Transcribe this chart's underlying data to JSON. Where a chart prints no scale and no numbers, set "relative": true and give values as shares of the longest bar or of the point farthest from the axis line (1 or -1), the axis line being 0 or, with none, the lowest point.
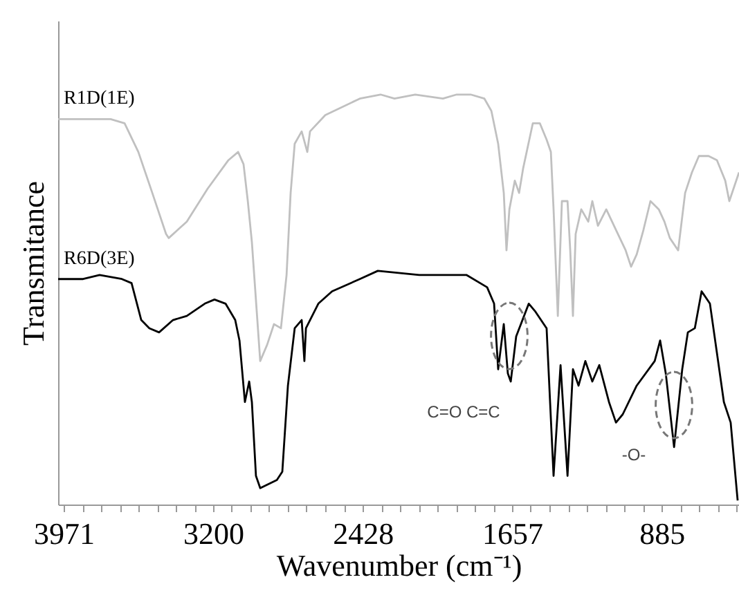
{
  "chart_data": {
    "type": "line",
    "relative": true,
    "xlabel": "Wavenumber (cm⁻¹)",
    "ylabel": "Transmitance",
    "xlim": [
      4000,
      486
    ],
    "xticks": [
      3971,
      {
        "value": 3875,
        "label": null
      },
      {
        "value": 3778,
        "label": null
      },
      {
        "value": 3682,
        "label": null
      },
      {
        "value": 3585,
        "label": null
      },
      {
        "value": 3489,
        "label": null
      },
      {
        "value": 3393,
        "label": null
      },
      {
        "value": 3296,
        "label": null
      },
      3200,
      {
        "value": 3104,
        "label": null
      },
      {
        "value": 3007,
        "label": null
      },
      {
        "value": 2911,
        "label": null
      },
      {
        "value": 2814,
        "label": null
      },
      {
        "value": 2718,
        "label": null
      },
      {
        "value": 2621,
        "label": null
      },
      {
        "value": 2525,
        "label": null
      },
      2428,
      {
        "value": 2332,
        "label": null
      },
      {
        "value": 2236,
        "label": null
      },
      {
        "value": 2139,
        "label": null
      },
      {
        "value": 2043,
        "label": null
      },
      {
        "value": 1946,
        "label": null
      },
      {
        "value": 1850,
        "label": null
      },
      {
        "value": 1753,
        "label": null
      },
      1657,
      {
        "value": 1561,
        "label": null
      },
      {
        "value": 1464,
        "label": null
      },
      {
        "value": 1368,
        "label": null
      },
      {
        "value": 1271,
        "label": null
      },
      {
        "value": 1175,
        "label": null
      },
      {
        "value": 1078,
        "label": null
      },
      {
        "value": 982,
        "label": null
      },
      885,
      {
        "value": 789,
        "label": null
      },
      {
        "value": 693,
        "label": null
      },
      {
        "value": 596,
        "label": null
      },
      {
        "value": 500,
        "label": null
      }
    ],
    "grid": false,
    "legend": false,
    "series": [
      {
        "name": "R1D(1E)",
        "color": "#c0c0c0",
        "x": [
          4000,
          3729,
          3657,
          3586,
          3514,
          3443,
          3429,
          3336,
          3229,
          3121,
          3071,
          3043,
          3021,
          3000,
          2957,
          2921,
          2886,
          2850,
          2821,
          2800,
          2779,
          2743,
          2714,
          2700,
          2621,
          2443,
          2336,
          2264,
          2157,
          2014,
          1943,
          1871,
          1800,
          1764,
          1729,
          1700,
          1686,
          1671,
          1643,
          1621,
          1600,
          1550,
          1514,
          1479,
          1457,
          1443,
          1421,
          1400,
          1371,
          1357,
          1343,
          1329,
          1300,
          1264,
          1243,
          1214,
          1171,
          1121,
          1071,
          1043,
          1014,
          979,
          943,
          900,
          871,
          843,
          800,
          764,
          729,
          693,
          643,
          600,
          557,
          536,
          486
        ],
        "values": [
          0.94,
          0.94,
          0.93,
          0.86,
          0.76,
          0.66,
          0.65,
          0.69,
          0.77,
          0.84,
          0.86,
          0.83,
          0.74,
          0.64,
          0.35,
          0.39,
          0.44,
          0.43,
          0.56,
          0.76,
          0.88,
          0.91,
          0.86,
          0.91,
          0.95,
          0.99,
          1.0,
          0.99,
          1.0,
          0.99,
          1.0,
          1.0,
          0.99,
          0.96,
          0.88,
          0.76,
          0.62,
          0.72,
          0.79,
          0.76,
          0.82,
          0.93,
          0.93,
          0.89,
          0.86,
          0.72,
          0.46,
          0.74,
          0.74,
          0.62,
          0.46,
          0.66,
          0.72,
          0.69,
          0.74,
          0.68,
          0.72,
          0.67,
          0.62,
          0.58,
          0.61,
          0.67,
          0.74,
          0.72,
          0.69,
          0.65,
          0.62,
          0.76,
          0.81,
          0.85,
          0.85,
          0.84,
          0.79,
          0.74,
          0.81
        ]
      },
      {
        "name": "R6D(3E)",
        "color": "#000000",
        "x": [
          4000,
          3871,
          3786,
          3671,
          3621,
          3571,
          3529,
          3479,
          3407,
          3336,
          3243,
          3193,
          3136,
          3086,
          3064,
          3036,
          3014,
          3000,
          2979,
          2957,
          2871,
          2843,
          2814,
          2779,
          2743,
          2729,
          2721,
          2657,
          2586,
          2443,
          2350,
          2136,
          1893,
          1786,
          1750,
          1729,
          1700,
          1679,
          1664,
          1636,
          1571,
          1536,
          1479,
          1443,
          1407,
          1371,
          1343,
          1314,
          1279,
          1243,
          1207,
          1157,
          1121,
          1086,
          1014,
          921,
          893,
          864,
          821,
          779,
          750,
          714,
          679,
          636,
          564,
          529,
          493
        ],
        "values": [
          0.55,
          0.55,
          0.56,
          0.55,
          0.54,
          0.45,
          0.43,
          0.42,
          0.45,
          0.46,
          0.49,
          0.5,
          0.49,
          0.45,
          0.4,
          0.25,
          0.3,
          0.25,
          0.07,
          0.04,
          0.06,
          0.08,
          0.29,
          0.43,
          0.45,
          0.35,
          0.43,
          0.49,
          0.52,
          0.55,
          0.57,
          0.56,
          0.56,
          0.53,
          0.49,
          0.33,
          0.44,
          0.32,
          0.3,
          0.41,
          0.49,
          0.47,
          0.43,
          0.07,
          0.34,
          0.07,
          0.33,
          0.29,
          0.35,
          0.3,
          0.34,
          0.25,
          0.2,
          0.22,
          0.29,
          0.35,
          0.4,
          0.32,
          0.14,
          0.33,
          0.42,
          0.43,
          0.52,
          0.49,
          0.25,
          0.2,
          0.01
        ]
      }
    ],
    "annotations": [
      "C=O  C=C",
      "-O-"
    ]
  }
}
